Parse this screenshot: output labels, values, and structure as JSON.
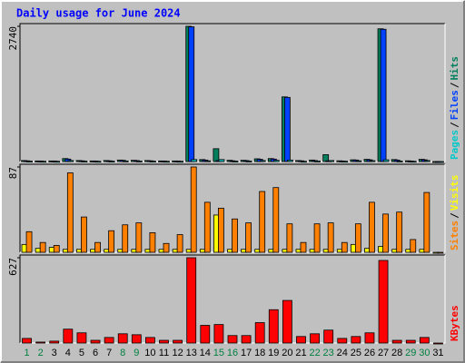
{
  "chart_data": [
    {
      "type": "bar",
      "title": "Daily usage for June 2024",
      "title_color": "#0000ff",
      "ylim": [
        0,
        2740
      ],
      "yticks": [
        2740
      ],
      "legend_separator": "/",
      "series": [
        {
          "name": "Pages",
          "color": "#00c8c8",
          "values": [
            8,
            5,
            5,
            20,
            8,
            5,
            8,
            12,
            10,
            8,
            5,
            5,
            40,
            15,
            40,
            8,
            10,
            20,
            25,
            30,
            5,
            10,
            20,
            6,
            15,
            18,
            35,
            10,
            5,
            20,
            0
          ]
        },
        {
          "name": "Files",
          "color": "#0040ff",
          "values": [
            15,
            10,
            10,
            50,
            15,
            10,
            15,
            25,
            20,
            15,
            10,
            10,
            2730,
            30,
            20,
            15,
            20,
            45,
            50,
            1300,
            15,
            20,
            15,
            10,
            30,
            35,
            2680,
            30,
            10,
            35,
            0
          ]
        },
        {
          "name": "Hits",
          "color": "#00805c",
          "values": [
            20,
            12,
            12,
            60,
            20,
            12,
            20,
            30,
            25,
            20,
            12,
            12,
            2740,
            40,
            260,
            25,
            25,
            55,
            60,
            1310,
            20,
            30,
            140,
            15,
            35,
            45,
            2690,
            40,
            15,
            45,
            0
          ]
        }
      ]
    },
    {
      "type": "bar",
      "ylim": [
        0,
        87
      ],
      "yticks": [
        87
      ],
      "legend_separator": "/",
      "series": [
        {
          "name": "Sites",
          "color": "#ff8000",
          "values": [
            21,
            10,
            7,
            81,
            36,
            10,
            22,
            28,
            30,
            20,
            9,
            18,
            87,
            51,
            45,
            34,
            30,
            62,
            66,
            29,
            10,
            29,
            30,
            10,
            29,
            51,
            39,
            41,
            13,
            61,
            0
          ]
        },
        {
          "name": "Visits",
          "color": "#ffff00",
          "values": [
            8,
            4,
            5,
            3,
            3,
            3,
            3,
            3,
            3,
            3,
            3,
            3,
            3,
            3,
            38,
            3,
            3,
            3,
            3,
            3,
            3,
            3,
            3,
            3,
            8,
            4,
            6,
            3,
            3,
            3,
            0
          ]
        }
      ]
    },
    {
      "type": "bar",
      "ylim": [
        0,
        627
      ],
      "yticks": [
        627
      ],
      "categories": [
        "1",
        "2",
        "3",
        "4",
        "5",
        "6",
        "7",
        "8",
        "9",
        "10",
        "11",
        "12",
        "13",
        "14",
        "15",
        "16",
        "17",
        "18",
        "19",
        "20",
        "21",
        "22",
        "23",
        "24",
        "25",
        "26",
        "27",
        "28",
        "29",
        "30",
        "31"
      ],
      "category_colors": [
        "#008040",
        "#008040",
        "#000000",
        "#000000",
        "#000000",
        "#000000",
        "#000000",
        "#008040",
        "#008040",
        "#000000",
        "#000000",
        "#000000",
        "#000000",
        "#000000",
        "#008040",
        "#008040",
        "#000000",
        "#000000",
        "#000000",
        "#000000",
        "#000000",
        "#008040",
        "#008040",
        "#000000",
        "#000000",
        "#000000",
        "#000000",
        "#000000",
        "#008040",
        "#008040",
        "#000000"
      ],
      "series": [
        {
          "name": "KBytes",
          "color": "#ff0000",
          "values": [
            34,
            7,
            14,
            102,
            75,
            20,
            41,
            68,
            61,
            41,
            20,
            20,
            627,
            130,
            136,
            55,
            55,
            150,
            245,
            313,
            48,
            68,
            95,
            34,
            48,
            75,
            607,
            20,
            20,
            41,
            0
          ]
        }
      ]
    }
  ]
}
